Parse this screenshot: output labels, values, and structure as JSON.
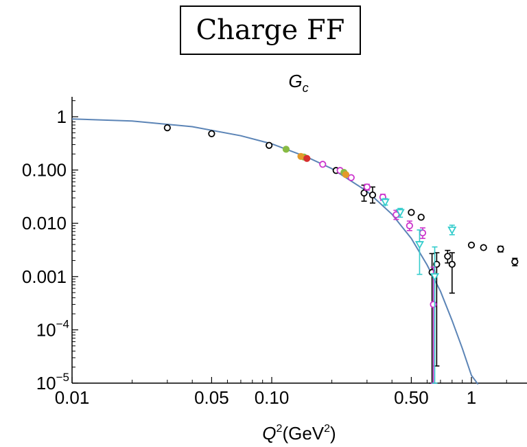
{
  "chart_data": {
    "type": "scatter",
    "title": "Charge FF",
    "subtitle": "G",
    "subtitle_sub": "c",
    "xlabel": "Q",
    "xlabel_sup": "2",
    "xlabel_unit": "(GeV",
    "xlabel_unit_sup": "2",
    "xlabel_unit_close": ")",
    "x_scale": "log",
    "y_scale": "log",
    "xlim": [
      0.01,
      1.75
    ],
    "ylim": [
      1e-05,
      2
    ],
    "grid": false,
    "x_ticks": [
      {
        "value": 0.01,
        "label": "0.01"
      },
      {
        "value": 0.05,
        "label": "0.05"
      },
      {
        "value": 0.1,
        "label": "0.10"
      },
      {
        "value": 0.5,
        "label": "0.50"
      },
      {
        "value": 1,
        "label": "1"
      }
    ],
    "y_ticks": [
      {
        "value": 1,
        "label": "1",
        "exp": ""
      },
      {
        "value": 0.1,
        "label": "0.100",
        "exp": ""
      },
      {
        "value": 0.01,
        "label": "0.010",
        "exp": ""
      },
      {
        "value": 0.001,
        "label": "0.001",
        "exp": ""
      },
      {
        "value": 0.0001,
        "label": "10",
        "exp": "−4"
      },
      {
        "value": 1e-05,
        "label": "10",
        "exp": "−5"
      }
    ],
    "curve_color": "#5b84b6",
    "curve": {
      "x": [
        0.01,
        0.02,
        0.04,
        0.07,
        0.1,
        0.15,
        0.2,
        0.3,
        0.4,
        0.5,
        0.6,
        0.7,
        0.8,
        0.9,
        1.0,
        1.08
      ],
      "y": [
        0.91,
        0.83,
        0.65,
        0.44,
        0.31,
        0.175,
        0.106,
        0.04,
        0.0148,
        0.0052,
        0.00165,
        0.00053,
        0.00015,
        4.5e-05,
        1.4e-05,
        9.5e-06
      ]
    },
    "series": [
      {
        "color": "#000000",
        "marker": "circle",
        "points": [
          {
            "x": 0.03,
            "y": 0.62
          },
          {
            "x": 0.05,
            "y": 0.48
          },
          {
            "x": 0.097,
            "y": 0.29
          },
          {
            "x": 0.21,
            "y": 0.098
          },
          {
            "x": 0.29,
            "y": 0.037,
            "ylo": 0.026,
            "yhi": 0.052
          },
          {
            "x": 0.32,
            "y": 0.034,
            "ylo": 0.024,
            "yhi": 0.048
          },
          {
            "x": 0.5,
            "y": 0.016
          },
          {
            "x": 0.56,
            "y": 0.013
          },
          {
            "x": 0.635,
            "y": 0.0012,
            "ylo": 1e-05,
            "yhi": 0.0027
          },
          {
            "x": 0.67,
            "y": 0.0017,
            "ylo": 2.1e-05,
            "yhi": 0.0028
          },
          {
            "x": 0.76,
            "y": 0.0024,
            "ylo": 0.0018,
            "yhi": 0.0031
          },
          {
            "x": 0.8,
            "y": 0.0017,
            "ylo": 0.00049,
            "yhi": 0.0028
          },
          {
            "x": 1.0,
            "y": 0.0039
          },
          {
            "x": 1.15,
            "y": 0.0035
          },
          {
            "x": 1.4,
            "y": 0.0033,
            "ylo": 0.0029,
            "yhi": 0.0037
          },
          {
            "x": 1.65,
            "y": 0.0019,
            "ylo": 0.0016,
            "yhi": 0.0022
          }
        ]
      },
      {
        "color": "#cc33cc",
        "marker": "circle",
        "points": [
          {
            "x": 0.18,
            "y": 0.128
          },
          {
            "x": 0.22,
            "y": 0.098
          },
          {
            "x": 0.25,
            "y": 0.072
          },
          {
            "x": 0.3,
            "y": 0.048,
            "ylo": 0.042,
            "yhi": 0.054
          },
          {
            "x": 0.36,
            "y": 0.031,
            "ylo": 0.027,
            "yhi": 0.035
          },
          {
            "x": 0.42,
            "y": 0.0145,
            "ylo": 0.0118,
            "yhi": 0.0175
          },
          {
            "x": 0.49,
            "y": 0.009,
            "ylo": 0.0073,
            "yhi": 0.011
          },
          {
            "x": 0.57,
            "y": 0.0066,
            "ylo": 0.0052,
            "yhi": 0.0082
          },
          {
            "x": 0.645,
            "y": 0.0003,
            "ylo": 1e-05,
            "yhi": 0.0015
          }
        ]
      },
      {
        "color": "#33cccc",
        "marker": "triangle-down",
        "points": [
          {
            "x": 0.37,
            "y": 0.025,
            "ylo": 0.022,
            "yhi": 0.029
          },
          {
            "x": 0.44,
            "y": 0.016,
            "ylo": 0.013,
            "yhi": 0.019
          },
          {
            "x": 0.55,
            "y": 0.004,
            "ylo": 0.0011,
            "yhi": 0.0075
          },
          {
            "x": 0.655,
            "y": 0.001,
            "ylo": 1e-05,
            "yhi": 0.0036
          },
          {
            "x": 0.8,
            "y": 0.0075,
            "ylo": 0.0061,
            "yhi": 0.0092
          }
        ]
      },
      {
        "color": "#88bb44",
        "marker": "circle",
        "points": [
          {
            "x": 0.118,
            "y": 0.245
          },
          {
            "x": 0.145,
            "y": 0.175
          },
          {
            "x": 0.23,
            "y": 0.09
          }
        ]
      },
      {
        "color": "#e39a2a",
        "marker": "circle",
        "points": [
          {
            "x": 0.14,
            "y": 0.18
          },
          {
            "x": 0.235,
            "y": 0.082
          }
        ]
      },
      {
        "color": "#d62f2f",
        "marker": "circle",
        "points": [
          {
            "x": 0.15,
            "y": 0.165
          }
        ]
      }
    ]
  }
}
